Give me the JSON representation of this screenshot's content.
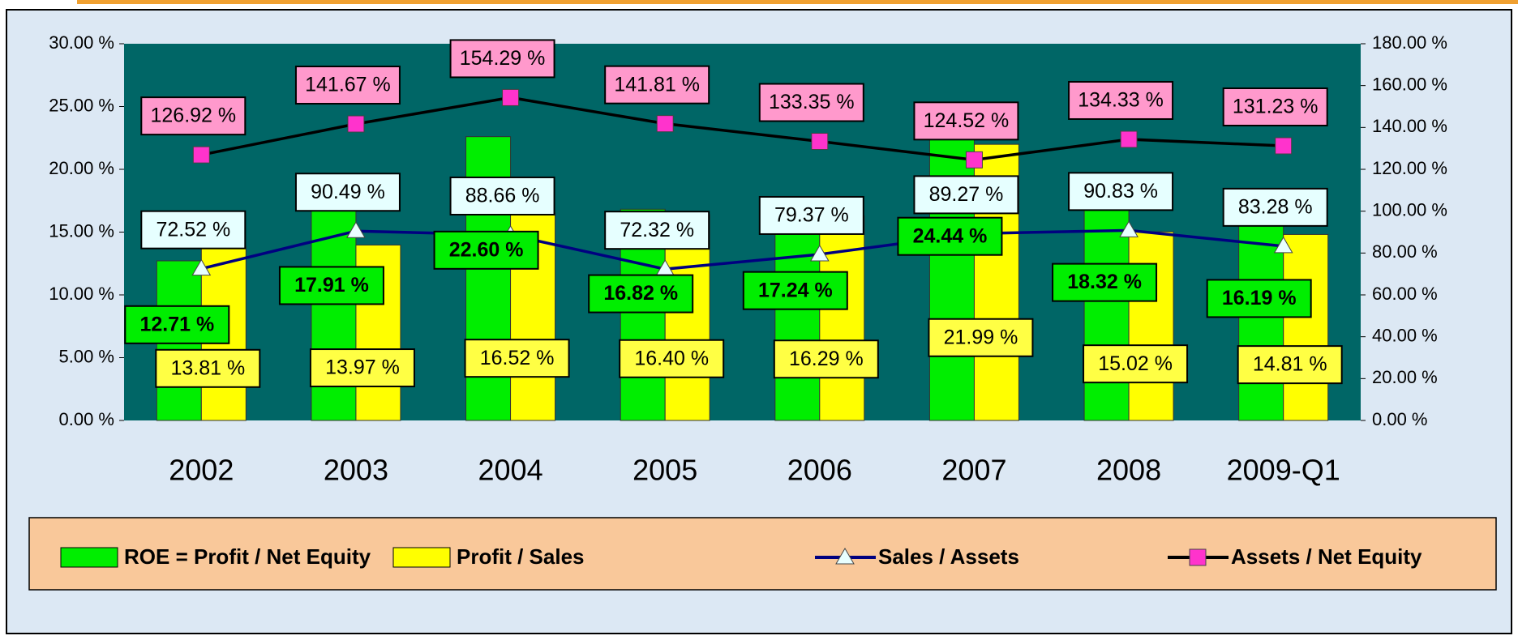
{
  "chart_data": {
    "type": "bar-line",
    "categories": [
      "2002",
      "2003",
      "2004",
      "2005",
      "2006",
      "2007",
      "2008",
      "2009-Q1"
    ],
    "series": [
      {
        "name": "ROE = Profit / Net Equity",
        "color": "#00ee00",
        "type": "bar",
        "axis": "y",
        "values": [
          12.71,
          17.91,
          22.6,
          16.82,
          17.24,
          24.44,
          18.32,
          16.19
        ],
        "value_labels": [
          "12.71 %",
          "17.91 %",
          "22.60 %",
          "16.82 %",
          "17.24 %",
          "24.44 %",
          "18.32 %",
          "16.19 %"
        ]
      },
      {
        "name": "Profit / Sales",
        "color": "#ffff00",
        "type": "bar",
        "axis": "y",
        "values": [
          13.81,
          13.97,
          16.52,
          16.4,
          16.29,
          21.99,
          15.02,
          14.81
        ],
        "value_labels": [
          "13.81 %",
          "13.97 %",
          "16.52 %",
          "16.40 %",
          "16.29 %",
          "21.99 %",
          "15.02 %",
          "14.81 %"
        ]
      },
      {
        "name": "Sales / Assets",
        "color": "#000080",
        "type": "line",
        "axis": "y2",
        "marker": "triangle",
        "values": [
          72.52,
          90.49,
          88.66,
          72.32,
          79.37,
          89.27,
          90.83,
          83.28
        ],
        "value_labels": [
          "72.52 %",
          "90.49 %",
          "88.66 %",
          "72.32 %",
          "79.37 %",
          "89.27 %",
          "90.83 %",
          "83.28 %"
        ]
      },
      {
        "name": "Assets / Net Equity",
        "color": "#000000",
        "type": "line",
        "axis": "y2",
        "marker": "square",
        "values": [
          126.92,
          141.67,
          154.29,
          141.81,
          133.35,
          124.52,
          134.33,
          131.23
        ],
        "value_labels": [
          "126.92 %",
          "141.67 %",
          "154.29 %",
          "141.81 %",
          "133.35 %",
          "124.52 %",
          "134.33 %",
          "131.23 %"
        ]
      }
    ],
    "ylim": [
      0,
      30
    ],
    "yticks": [
      {
        "value": 0,
        "label": "0.00 %"
      },
      {
        "value": 5,
        "label": "5.00 %"
      },
      {
        "value": 10,
        "label": "10.00 %"
      },
      {
        "value": 15,
        "label": "15.00 %"
      },
      {
        "value": 20,
        "label": "20.00 %"
      },
      {
        "value": 25,
        "label": "25.00 %"
      },
      {
        "value": 30,
        "label": "30.00 %"
      }
    ],
    "y2lim": [
      0,
      180
    ],
    "y2ticks": [
      {
        "value": 0,
        "label": "0.00 %"
      },
      {
        "value": 20,
        "label": "20.00 %"
      },
      {
        "value": 40,
        "label": "40.00 %"
      },
      {
        "value": 60,
        "label": "60.00 %"
      },
      {
        "value": 80,
        "label": "80.00 %"
      },
      {
        "value": 100,
        "label": "100.00 %"
      },
      {
        "value": 120,
        "label": "120.00 %"
      },
      {
        "value": 140,
        "label": "140.00 %"
      },
      {
        "value": 160,
        "label": "160.00 %"
      },
      {
        "value": 180,
        "label": "180.00 %"
      }
    ],
    "legend": "bottom"
  }
}
